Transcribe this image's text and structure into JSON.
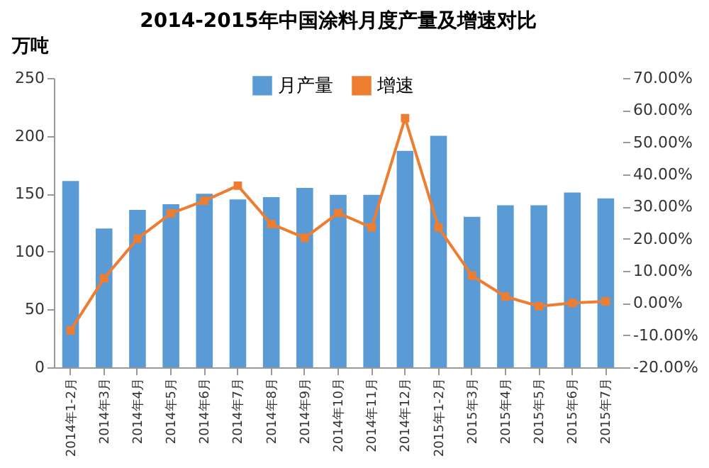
{
  "chart_data": {
    "type": "bar",
    "title": "2014-2015年中国涂料月度产量及增速对比",
    "ylabel": "万吨",
    "categories": [
      "2014年1-2月",
      "2014年3月",
      "2014年4月",
      "2014年5月",
      "2014年6月",
      "2014年7月",
      "2014年8月",
      "2014年9月",
      "2014年10月",
      "2014年11月",
      "2014年12月",
      "2015年1-2月",
      "2015年3月",
      "2015年4月",
      "2015年5月",
      "2015年6月",
      "2015年7月"
    ],
    "series": [
      {
        "name": "月产量",
        "color": "#5b9bd5",
        "values": [
          161,
          120,
          136,
          141,
          150,
          145,
          147,
          155,
          149,
          149,
          187,
          200,
          130,
          140,
          140,
          151,
          146
        ]
      },
      {
        "name": "增速",
        "type": "line",
        "axis": "y2",
        "color": "#ed7d31",
        "marker": "square",
        "values": [
          -8.5,
          7.7,
          20,
          27.9,
          31.8,
          36.5,
          24.6,
          20.3,
          28,
          23.5,
          57.5,
          23.5,
          8.5,
          2,
          -1,
          0,
          0.5
        ]
      }
    ],
    "ylim": [
      0,
      250
    ],
    "yticks": [
      0,
      50,
      100,
      150,
      200,
      250
    ],
    "y2lim": [
      -20,
      70
    ],
    "y2ticks": [
      {
        "value": -20,
        "label": "-20.00%"
      },
      {
        "value": -10,
        "label": "-10.00%"
      },
      {
        "value": 0,
        "label": "0.00%"
      },
      {
        "value": 10,
        "label": "10.00%"
      },
      {
        "value": 20,
        "label": "20.00%"
      },
      {
        "value": 30,
        "label": "30.00%"
      },
      {
        "value": 40,
        "label": "40.00%"
      },
      {
        "value": 50,
        "label": "50.00%"
      },
      {
        "value": 60,
        "label": "60.00%"
      },
      {
        "value": 70,
        "label": "70.00%"
      }
    ],
    "legend": "top",
    "grid": false
  }
}
